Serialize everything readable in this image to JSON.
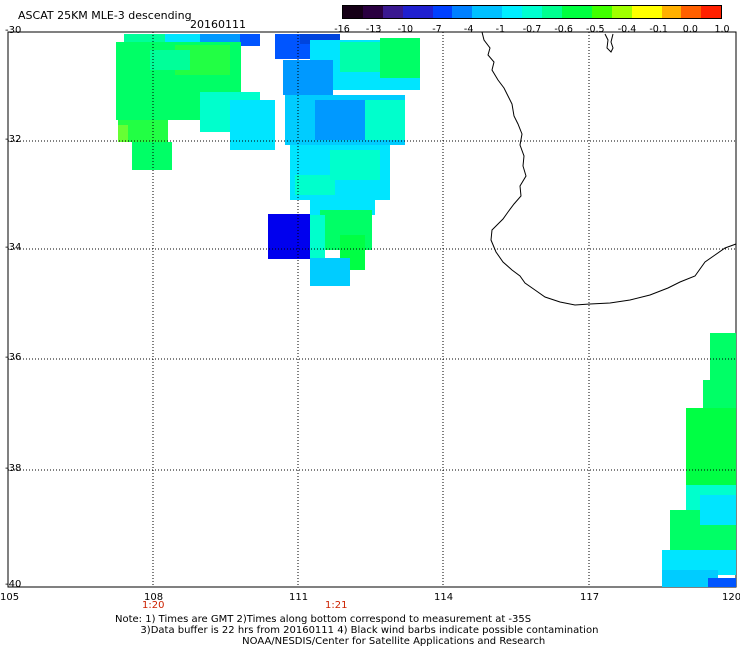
{
  "title": "ASCAT 25KM MLE-3 descending",
  "date": "20160111",
  "colorbar": {
    "labels": [
      "-16",
      "-13",
      "-10",
      "-7",
      "-4",
      "-1",
      "-0.7",
      "-0.6",
      "-0.5",
      "-0.4",
      "-0.1",
      "0.0",
      "1.0"
    ],
    "colors": [
      "#2a0033",
      "#3c1a7a",
      "#2b2bd6",
      "#0055ff",
      "#0099ff",
      "#00e5ff",
      "#00ffcc",
      "#00ff66",
      "#33ff00",
      "#aaff00",
      "#ffff00",
      "#ff9900",
      "#ff3300"
    ]
  },
  "map": {
    "lat_ticks": [
      "-30",
      "-32",
      "-34",
      "-36",
      "-38",
      "-40"
    ],
    "lon_ticks": [
      "105",
      "108",
      "111",
      "114",
      "117",
      "120"
    ],
    "time_labels": [
      "1:20",
      "1:21"
    ]
  },
  "note": {
    "lines": [
      "Note: 1) Times are GMT 2)Times along bottom correspond to measurement at -35S",
      "        3)Data buffer is 22 hrs from 20160111 4) Black wind barbs indicate possible contamination",
      "                                        NOAA/NESDIS/Center for Satellite Applications and Research"
    ]
  }
}
